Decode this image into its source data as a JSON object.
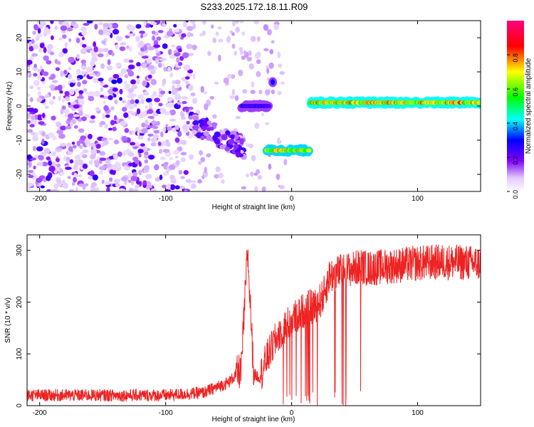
{
  "title": "S233.2025.172.18.11.R09",
  "chart_data": [
    {
      "type": "heatmap",
      "xlabel": "Height of straight line (km)",
      "ylabel": "Frequency (Hz)",
      "xlim": [
        -210,
        150
      ],
      "ylim": [
        -25,
        25
      ],
      "xticks": [
        -200,
        -100,
        0,
        100
      ],
      "yticks": [
        20,
        10,
        0,
        -10,
        -20
      ],
      "colorbar": {
        "label": "Normalized spectral amplitude",
        "range": [
          0,
          1
        ],
        "ticks": [
          "0.0",
          "0.2",
          "0.4",
          "0.6",
          "0.8"
        ],
        "tick_values": [
          0,
          0.2,
          0.4,
          0.6,
          0.8
        ]
      },
      "features": [
        {
          "name": "noise",
          "x": [
            -210,
            -80
          ],
          "freq": [
            -25,
            25
          ],
          "amplitude": 0.1
        },
        {
          "name": "descending-band",
          "x": [
            -80,
            -38
          ],
          "freq_start": -5,
          "freq_end": -12,
          "amplitude": 0.12
        },
        {
          "name": "band-near-zero",
          "x": [
            -40,
            -18
          ],
          "freq": 0,
          "amplitude": 0.3
        },
        {
          "name": "band-negative",
          "x": [
            -20,
            14
          ],
          "freq": -13,
          "amplitude": 0.8
        },
        {
          "name": "spot",
          "x": -15,
          "freq": 7,
          "amplitude": 0.3
        },
        {
          "name": "main-band",
          "x": [
            15,
            150
          ],
          "freq": 1,
          "amplitude": 0.85
        }
      ]
    },
    {
      "type": "line",
      "xlabel": "Height of straight line (km)",
      "ylabel": "SNR (10 * v/v)",
      "xlim": [
        -210,
        150
      ],
      "ylim": [
        0,
        330
      ],
      "xticks": [
        -200,
        -100,
        0,
        100
      ],
      "yticks": [
        0,
        100,
        200,
        300
      ],
      "color": "#ee2222",
      "series": [
        {
          "x": [
            -210,
            -150,
            -100,
            -70,
            -50,
            -40,
            -35,
            -30,
            -25,
            -20,
            -10,
            0,
            10,
            20,
            25,
            30,
            40,
            50,
            55,
            60,
            80,
            100,
            120,
            150
          ],
          "y": [
            20,
            20,
            20,
            25,
            45,
            70,
            300,
            60,
            55,
            90,
            140,
            165,
            185,
            195,
            210,
            250,
            260,
            265,
            270,
            265,
            270,
            275,
            278,
            275
          ]
        }
      ]
    }
  ]
}
